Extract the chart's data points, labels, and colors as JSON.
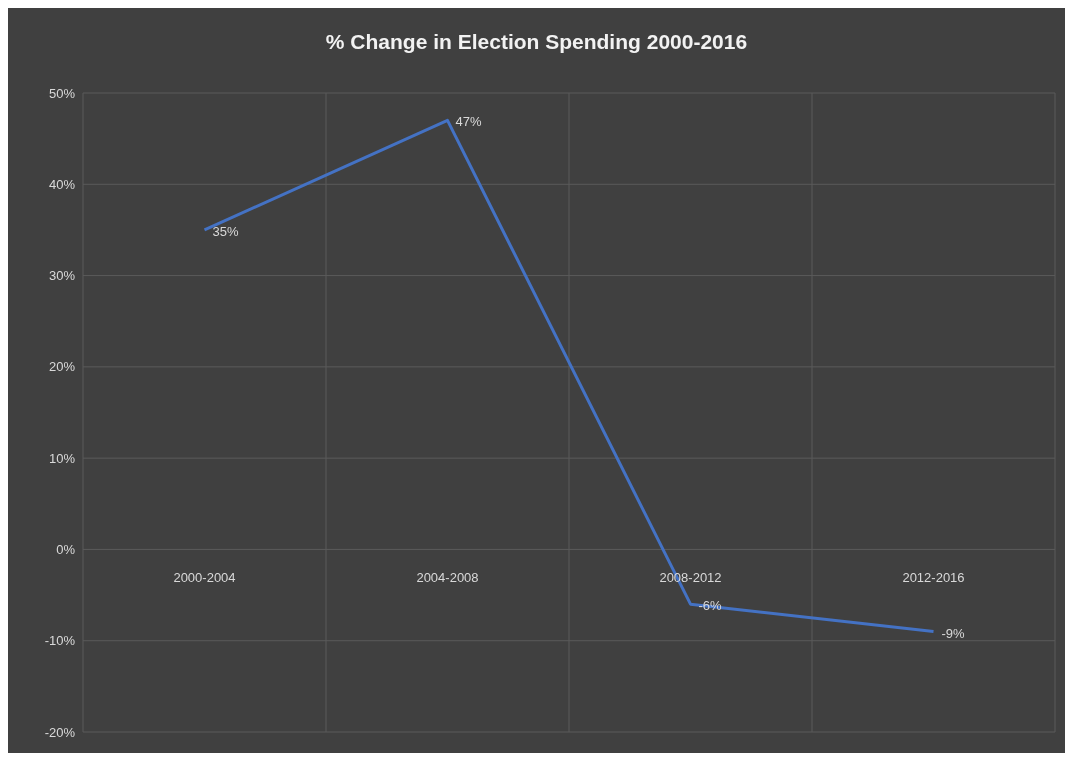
{
  "chart_data": {
    "type": "line",
    "title": "% Change in Election Spending 2000-2016",
    "categories": [
      "2000-2004",
      "2004-2008",
      "2008-2012",
      "2012-2016"
    ],
    "series": [
      {
        "color": "#4472c4",
        "values": [
          35,
          47,
          -6,
          -9
        ],
        "value_labels": [
          "35%",
          "47%",
          "-6%",
          "-9%"
        ]
      }
    ],
    "ylim": [
      -20,
      50
    ],
    "yticks": [
      {
        "value": -20,
        "label": "-20%"
      },
      {
        "value": -10,
        "label": "-10%"
      },
      {
        "value": 0,
        "label": "0%"
      },
      {
        "value": 10,
        "label": "10%"
      },
      {
        "value": 20,
        "label": "20%"
      },
      {
        "value": 30,
        "label": "30%"
      },
      {
        "value": 40,
        "label": "40%"
      },
      {
        "value": 50,
        "label": "50%"
      }
    ],
    "grid": true,
    "marker": "none",
    "line_style": "solid"
  }
}
